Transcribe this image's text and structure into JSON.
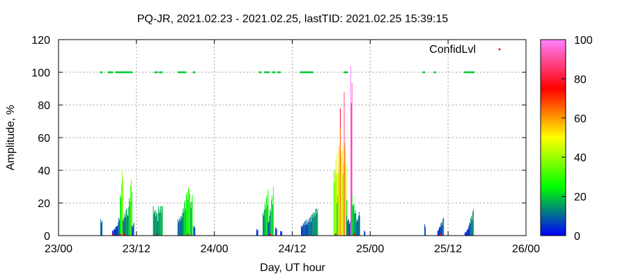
{
  "chart_data": {
    "type": "bar",
    "title": "PQ-JR, 2021.02.23 - 2021.02.25, lastTID: 2021.02.25 15:39:15",
    "xlabel": "Day, UT hour",
    "ylabel": "Amplitude, %",
    "xlim": [
      0,
      72
    ],
    "ylim": [
      0,
      120
    ],
    "x_ticks": [
      {
        "x": 0,
        "label": "23/00"
      },
      {
        "x": 12,
        "label": "23/12"
      },
      {
        "x": 24,
        "label": "24/00"
      },
      {
        "x": 36,
        "label": "24/12"
      },
      {
        "x": 48,
        "label": "25/00"
      },
      {
        "x": 60,
        "label": "25/12"
      },
      {
        "x": 72,
        "label": "26/00"
      }
    ],
    "y_ticks": [
      0,
      20,
      40,
      60,
      80,
      100,
      120
    ],
    "grid": true,
    "legend": {
      "entries": [
        "ConfidLvl"
      ],
      "position": "top-right"
    },
    "colorbar": {
      "range": [
        0,
        100
      ],
      "ticks": [
        0,
        20,
        40,
        60,
        80,
        100
      ],
      "stops": [
        "#0000ff",
        "#00ff00",
        "#ffff00",
        "#ff0000",
        "#ff80ff"
      ]
    },
    "bar_segments": [
      {
        "from": 6.5,
        "to": 6.7,
        "step": 0.1,
        "start": 10,
        "end": 10
      },
      {
        "from": 8.3,
        "to": 9.0,
        "step": 0.1,
        "start": 3,
        "end": 6
      },
      {
        "from": 9.0,
        "to": 9.5,
        "step": 0.1,
        "start": 6,
        "end": 14
      },
      {
        "from": 9.5,
        "to": 9.9,
        "step": 0.1,
        "start": 25,
        "end": 44
      },
      {
        "from": 9.9,
        "to": 10.6,
        "step": 0.1,
        "start": 10,
        "end": 18
      },
      {
        "from": 10.6,
        "to": 11.3,
        "step": 0.1,
        "start": 12,
        "end": 38
      },
      {
        "from": 11.3,
        "to": 11.6,
        "step": 0.1,
        "start": 6,
        "end": 8
      },
      {
        "from": 14.6,
        "to": 15.4,
        "step": 0.1,
        "start": 18,
        "end": 12
      },
      {
        "from": 15.4,
        "to": 16.0,
        "step": 0.1,
        "start": 18,
        "end": 18
      },
      {
        "from": 18.4,
        "to": 18.9,
        "step": 0.1,
        "start": 10,
        "end": 12
      },
      {
        "from": 18.9,
        "to": 20.2,
        "step": 0.1,
        "start": 12,
        "end": 33
      },
      {
        "from": 20.3,
        "to": 20.6,
        "step": 0.1,
        "start": 20,
        "end": 25
      },
      {
        "from": 20.8,
        "to": 21.0,
        "step": 0.1,
        "start": 6,
        "end": 6
      },
      {
        "from": 30.5,
        "to": 30.7,
        "step": 0.1,
        "start": 4,
        "end": 4
      },
      {
        "from": 31.5,
        "to": 32.3,
        "step": 0.1,
        "start": 14,
        "end": 28
      },
      {
        "from": 32.3,
        "to": 33.1,
        "step": 0.1,
        "start": 8,
        "end": 30
      },
      {
        "from": 33.4,
        "to": 33.6,
        "step": 0.1,
        "start": 5,
        "end": 5
      },
      {
        "from": 34.2,
        "to": 34.4,
        "step": 0.1,
        "start": 3,
        "end": 3
      },
      {
        "from": 37.4,
        "to": 38.2,
        "step": 0.1,
        "start": 6,
        "end": 10
      },
      {
        "from": 38.2,
        "to": 39.9,
        "step": 0.1,
        "start": 8,
        "end": 18
      },
      {
        "from": 42.4,
        "to": 42.9,
        "step": 0.1,
        "start": 40,
        "end": 50
      },
      {
        "from": 42.9,
        "to": 43.4,
        "step": 0.1,
        "start": 20,
        "end": 78
      },
      {
        "from": 43.4,
        "to": 44.0,
        "step": 0.1,
        "start": 66,
        "end": 40
      },
      {
        "from": 44.0,
        "to": 44.4,
        "step": 0.1,
        "start": 88,
        "end": 28
      },
      {
        "from": 44.4,
        "to": 45.0,
        "step": 0.1,
        "start": 12,
        "end": 8
      },
      {
        "from": 45.0,
        "to": 45.2,
        "step": 0.1,
        "start": 104,
        "end": 104
      },
      {
        "from": 45.2,
        "to": 46.0,
        "step": 0.1,
        "start": 25,
        "end": 10
      },
      {
        "from": 46.0,
        "to": 46.4,
        "step": 0.1,
        "start": 10,
        "end": 16
      },
      {
        "from": 47.1,
        "to": 47.2,
        "step": 0.1,
        "start": 3,
        "end": 3
      },
      {
        "from": 56.4,
        "to": 56.5,
        "step": 0.1,
        "start": 7,
        "end": 7
      },
      {
        "from": 58.4,
        "to": 59.3,
        "step": 0.1,
        "start": 3,
        "end": 11
      },
      {
        "from": 62.6,
        "to": 62.9,
        "step": 0.1,
        "start": 2,
        "end": 3
      },
      {
        "from": 63.0,
        "to": 63.9,
        "step": 0.1,
        "start": 4,
        "end": 16
      }
    ],
    "confidence_ranges": [
      [
        6.5,
        6.7
      ],
      [
        7.7,
        8.3
      ],
      [
        8.9,
        11.4
      ],
      [
        14.9,
        15.2
      ],
      [
        15.6,
        16.0
      ],
      [
        18.5,
        19.6
      ],
      [
        20.8,
        21.0
      ],
      [
        31.0,
        31.2
      ],
      [
        31.8,
        32.4
      ],
      [
        33.0,
        33.4
      ],
      [
        33.8,
        34.1
      ],
      [
        37.3,
        39.1
      ],
      [
        44.0,
        44.5
      ],
      [
        56.2,
        56.4
      ],
      [
        57.9,
        58.1
      ],
      [
        62.6,
        64.0
      ]
    ],
    "baseline_markers": [
      [
        8.3,
        8.5
      ],
      [
        9.3,
        9.6
      ],
      [
        10.1,
        10.3
      ],
      [
        15.1,
        15.3
      ],
      [
        19.8,
        19.9
      ],
      [
        32.5,
        32.6
      ],
      [
        42.6,
        42.8
      ],
      [
        45.4,
        45.7
      ],
      [
        58.7,
        58.9
      ]
    ]
  }
}
